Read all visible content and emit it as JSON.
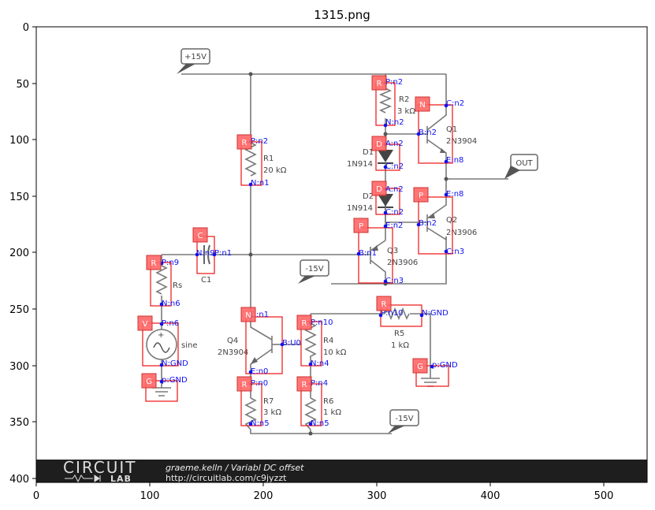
{
  "title": "1315.png",
  "axes": {
    "x_ticks": [
      "0",
      "100",
      "200",
      "300",
      "400",
      "500"
    ],
    "y_ticks": [
      "0",
      "50",
      "100",
      "150",
      "200",
      "250",
      "300",
      "350",
      "400"
    ]
  },
  "circuit": {
    "labels": {
      "vpos": "+15V",
      "vneg1": "-15V",
      "vneg2": "-15V",
      "out": "OUT",
      "r2": "R2",
      "r2v": "3 kΩ",
      "q1": "Q1",
      "q1t": "2N3904",
      "d1": "D1",
      "d1t": "1N914",
      "d2": "D2",
      "d2t": "1N914",
      "r1": "R1",
      "r1v": "20 kΩ",
      "q2": "Q2",
      "q2t": "2N3906",
      "q3": "Q3",
      "q3t": "2N3906",
      "c1": "C1",
      "rs": "Rs",
      "sine": "sine",
      "q4": "Q4",
      "q4t": "2N3904",
      "r4": "R4",
      "r4v": "10 kΩ",
      "r5": "R5",
      "r5v": "1 kΩ",
      "r7": "R7",
      "r7v": "3 kΩ",
      "r6": "R6",
      "r6v": "1 kΩ"
    },
    "footer": {
      "brand": "CIRCUIT",
      "brand2": "LAB",
      "author_line": "graeme.kelln / Variabl DC offset",
      "url": "http://circuitlab.com/c9jyzzt"
    }
  },
  "annotations": {
    "tags": {
      "r2": "R",
      "q1": "N",
      "d1": "D",
      "r1": "R",
      "d2": "D",
      "q2": "P",
      "q3": "P",
      "c1": "C",
      "rs": "R",
      "r5": "R",
      "v": "V",
      "q4": "N",
      "r4": "R",
      "g1": "G",
      "g2": "G",
      "r7": "R",
      "r6": "R"
    },
    "pins": {
      "r2_p": "P:n2",
      "r2_n": "N:n2",
      "q1_c": "C:n2",
      "q1_b": "B:n2",
      "q1_e": "E:n8",
      "d1_a": "A:n2",
      "d1_c": "C:n2",
      "d2_a": "A:n2",
      "d2_c": "C:n2",
      "r1_p": "P:n2",
      "r1_n": "N:n1",
      "q2_e": "E:n8",
      "q2_b": "B:n2",
      "q2_c": "C:n3",
      "q3_e": "E:n2",
      "q3_b": "B:n1",
      "q3_c": "C:n3",
      "c1_n": "N:n9",
      "c1_p": "P:n1",
      "rs_p": "P:n9",
      "rs_n": "N:n6",
      "r5_p": "P:n10",
      "r5_n": "N:GND",
      "v_p": "P:n6",
      "v_n": "N:GND",
      "q4_c": "C:n1",
      "q4_b": "B:U0",
      "q4_e": "E:n0",
      "r4_p": "P:n10",
      "r4_n": "N:n4",
      "g1": "p:GND",
      "g2": "p:GND",
      "r7_p": "P:n0",
      "r7_n": "N:n5",
      "r6_p": "P:n4",
      "r6_n": "N:n5"
    },
    "box_color": "#ee1111",
    "tag_color": "#ff6666",
    "pin_color": "#1010ee"
  }
}
